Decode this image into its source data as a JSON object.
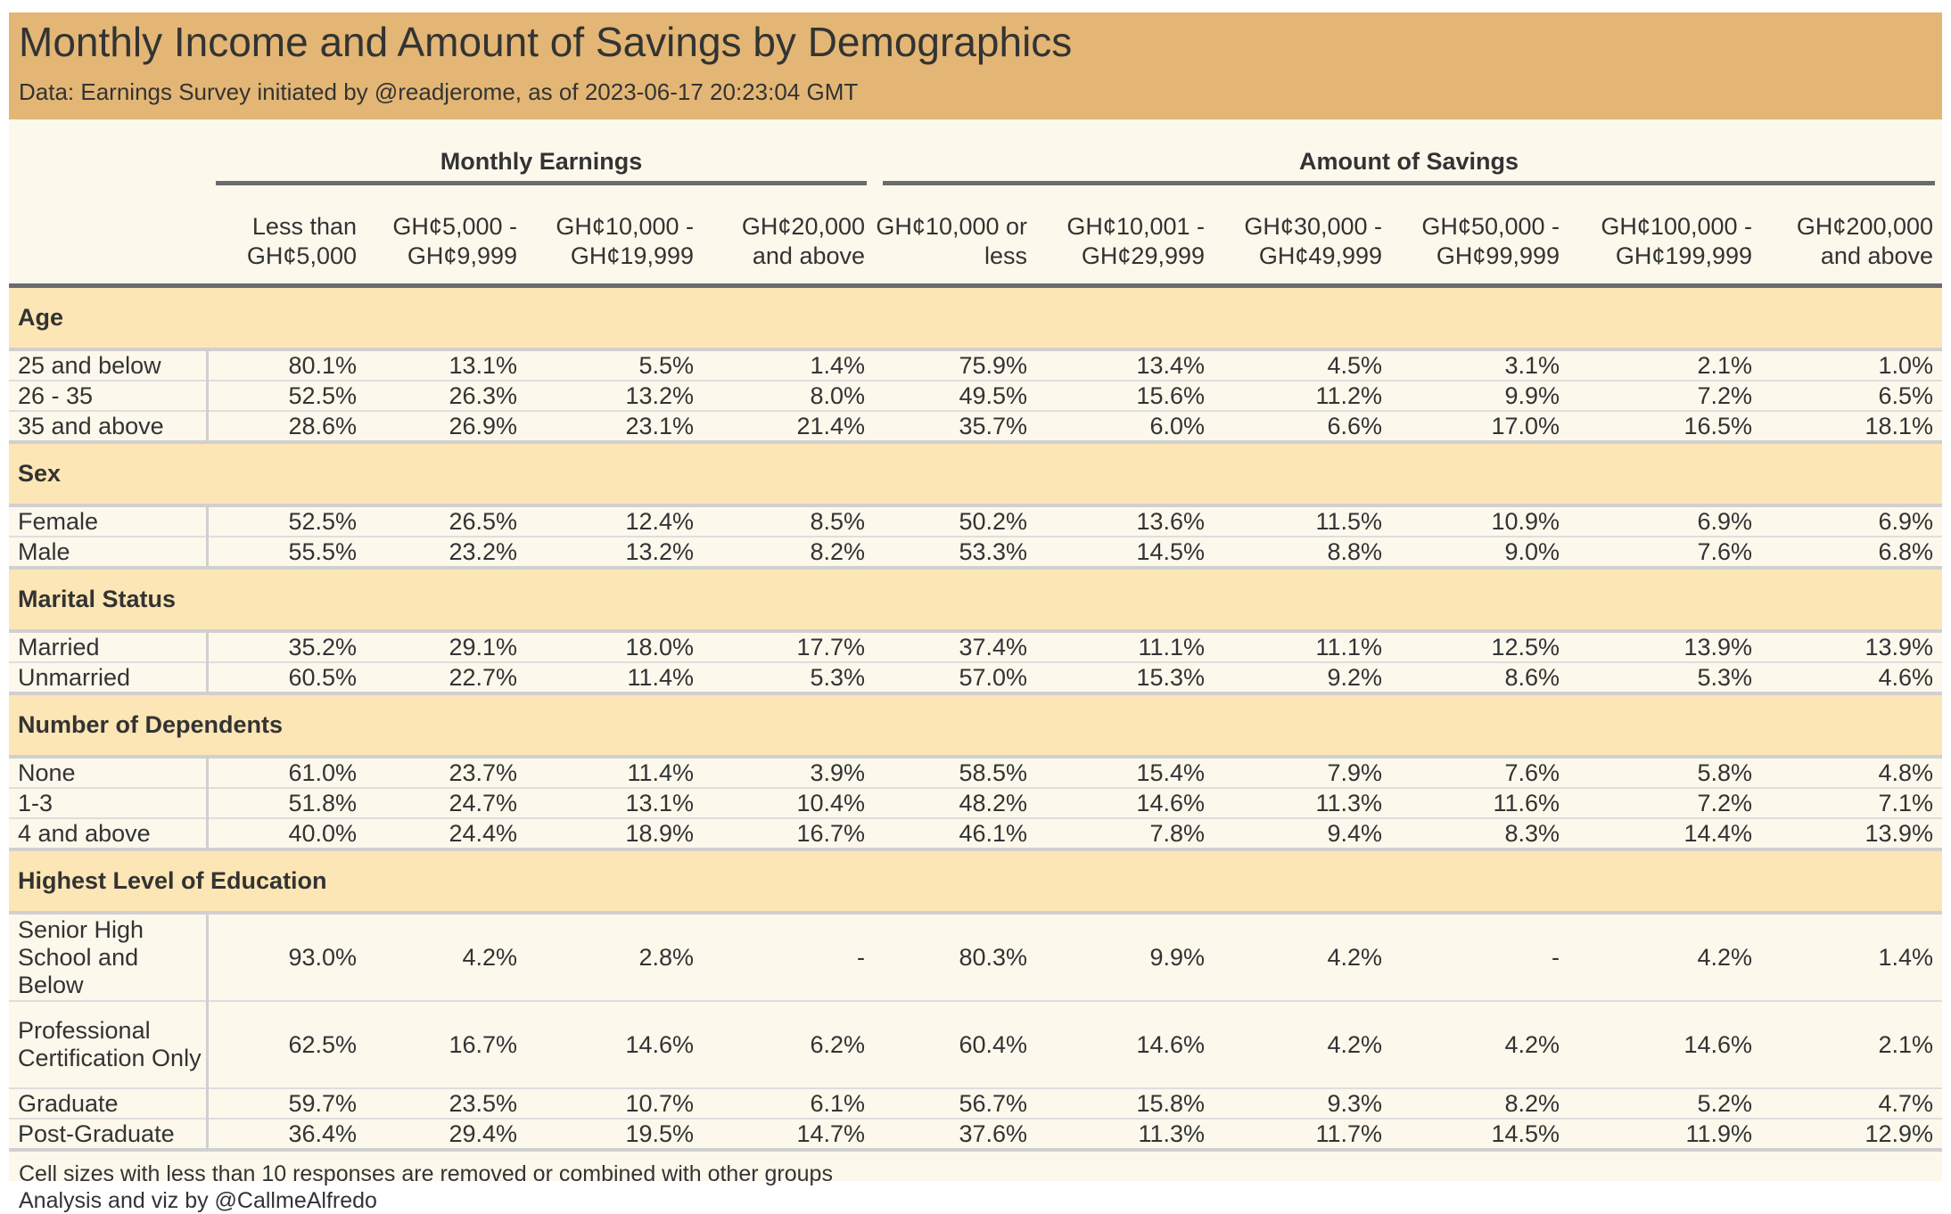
{
  "title": "Monthly Income and Amount of Savings by Demographics",
  "subtitle": "Data: Earnings Survey initiated by @readjerome, as of 2023-06-17 20:23:04 GMT",
  "footnotes": [
    "Cell sizes with less than 10 responses are removed or combined with other groups",
    "Analysis and viz by @CallmeAlfredo"
  ],
  "colors": {
    "title_band": "#e3b675",
    "group_band": "#fde6b5",
    "background": "#fdf8ec",
    "rule": "#6b6b6b"
  },
  "chart_data": {
    "type": "table",
    "spanners": [
      {
        "label": "Monthly Earnings",
        "span": 4
      },
      {
        "label": "Amount of Savings",
        "span": 6
      }
    ],
    "columns": [
      "Less than GH¢5,000",
      "GH¢5,000 - GH¢9,999",
      "GH¢10,000 - GH¢19,999",
      "GH¢20,000 and above",
      "GH¢10,000 or less",
      "GH¢10,001 - GH¢29,999",
      "GH¢30,000 - GH¢49,999",
      "GH¢50,000 - GH¢99,999",
      "GH¢100,000 - GH¢199,999",
      "GH¢200,000 and above"
    ],
    "groups": [
      {
        "name": "Age",
        "rows": [
          {
            "label": "25 and below",
            "values": [
              "80.1%",
              "13.1%",
              "5.5%",
              "1.4%",
              "75.9%",
              "13.4%",
              "4.5%",
              "3.1%",
              "2.1%",
              "1.0%"
            ]
          },
          {
            "label": "26 - 35",
            "values": [
              "52.5%",
              "26.3%",
              "13.2%",
              "8.0%",
              "49.5%",
              "15.6%",
              "11.2%",
              "9.9%",
              "7.2%",
              "6.5%"
            ]
          },
          {
            "label": "35 and above",
            "values": [
              "28.6%",
              "26.9%",
              "23.1%",
              "21.4%",
              "35.7%",
              "6.0%",
              "6.6%",
              "17.0%",
              "16.5%",
              "18.1%"
            ]
          }
        ]
      },
      {
        "name": "Sex",
        "rows": [
          {
            "label": "Female",
            "values": [
              "52.5%",
              "26.5%",
              "12.4%",
              "8.5%",
              "50.2%",
              "13.6%",
              "11.5%",
              "10.9%",
              "6.9%",
              "6.9%"
            ]
          },
          {
            "label": "Male",
            "values": [
              "55.5%",
              "23.2%",
              "13.2%",
              "8.2%",
              "53.3%",
              "14.5%",
              "8.8%",
              "9.0%",
              "7.6%",
              "6.8%"
            ]
          }
        ]
      },
      {
        "name": "Marital Status",
        "rows": [
          {
            "label": "Married",
            "values": [
              "35.2%",
              "29.1%",
              "18.0%",
              "17.7%",
              "37.4%",
              "11.1%",
              "11.1%",
              "12.5%",
              "13.9%",
              "13.9%"
            ]
          },
          {
            "label": "Unmarried",
            "values": [
              "60.5%",
              "22.7%",
              "11.4%",
              "5.3%",
              "57.0%",
              "15.3%",
              "9.2%",
              "8.6%",
              "5.3%",
              "4.6%"
            ]
          }
        ]
      },
      {
        "name": "Number of Dependents",
        "rows": [
          {
            "label": "None",
            "values": [
              "61.0%",
              "23.7%",
              "11.4%",
              "3.9%",
              "58.5%",
              "15.4%",
              "7.9%",
              "7.6%",
              "5.8%",
              "4.8%"
            ]
          },
          {
            "label": "1-3",
            "values": [
              "51.8%",
              "24.7%",
              "13.1%",
              "10.4%",
              "48.2%",
              "14.6%",
              "11.3%",
              "11.6%",
              "7.2%",
              "7.1%"
            ]
          },
          {
            "label": "4 and above",
            "values": [
              "40.0%",
              "24.4%",
              "18.9%",
              "16.7%",
              "46.1%",
              "7.8%",
              "9.4%",
              "8.3%",
              "14.4%",
              "13.9%"
            ]
          }
        ]
      },
      {
        "name": "Highest Level of Education",
        "rows": [
          {
            "label": "Senior High School and Below",
            "values": [
              "93.0%",
              "4.2%",
              "2.8%",
              "-",
              "80.3%",
              "9.9%",
              "4.2%",
              "-",
              "4.2%",
              "1.4%"
            ]
          },
          {
            "label": "Professional Certification Only",
            "values": [
              "62.5%",
              "16.7%",
              "14.6%",
              "6.2%",
              "60.4%",
              "14.6%",
              "4.2%",
              "4.2%",
              "14.6%",
              "2.1%"
            ]
          },
          {
            "label": "Graduate",
            "values": [
              "59.7%",
              "23.5%",
              "10.7%",
              "6.1%",
              "56.7%",
              "15.8%",
              "9.3%",
              "8.2%",
              "5.2%",
              "4.7%"
            ]
          },
          {
            "label": "Post-Graduate",
            "values": [
              "36.4%",
              "29.4%",
              "19.5%",
              "14.7%",
              "37.6%",
              "11.3%",
              "11.7%",
              "14.5%",
              "11.9%",
              "12.9%"
            ]
          }
        ]
      }
    ]
  }
}
